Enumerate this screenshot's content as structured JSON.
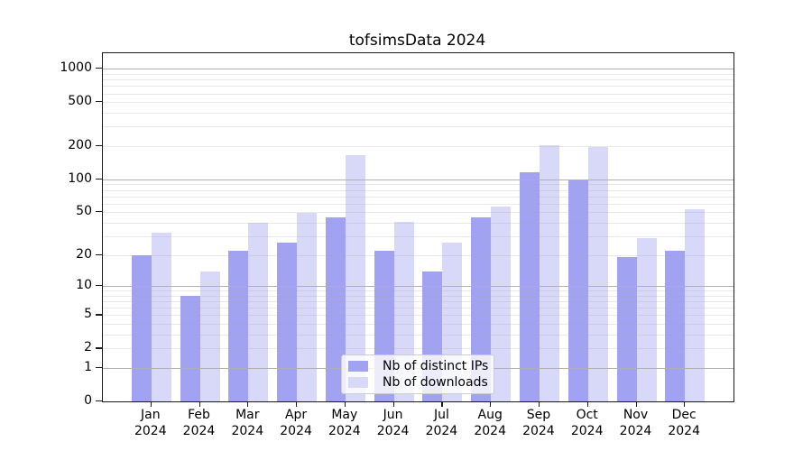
{
  "figure": {
    "title": "tofsimsData 2024"
  },
  "chart_data": {
    "type": "bar",
    "title": "tofsimsData 2024",
    "categories": [
      "Jan",
      "Feb",
      "Mar",
      "Apr",
      "May",
      "Jun",
      "Jul",
      "Aug",
      "Sep",
      "Oct",
      "Nov",
      "Dec"
    ],
    "year": "2024",
    "series": [
      {
        "name": "Nb of distinct IPs",
        "color": "#a2a2f2",
        "values": [
          20,
          8,
          22,
          26,
          45,
          22,
          14,
          45,
          116,
          99,
          19,
          22
        ]
      },
      {
        "name": "Nb of downloads",
        "color": "#d8d8f8",
        "values": [
          32,
          14,
          40,
          49,
          166,
          41,
          26,
          56,
          205,
          196,
          29,
          53
        ]
      }
    ],
    "yscale": "log1p",
    "ylim": [
      0,
      1382
    ],
    "yticks": [
      0,
      1,
      2,
      5,
      10,
      20,
      50,
      100,
      200,
      500,
      1000
    ],
    "grid": {
      "major_ticks": [
        1,
        10,
        100,
        1000
      ],
      "minor_ticks": [
        2,
        3,
        4,
        5,
        6,
        7,
        8,
        9,
        20,
        30,
        40,
        50,
        60,
        70,
        80,
        90,
        200,
        300,
        400,
        500,
        600,
        700,
        800,
        900
      ],
      "major_color": "#b0b0b0"
    },
    "legend": {
      "labels": [
        "Nb of distinct IPs",
        "Nb of downloads"
      ],
      "position": "lower center"
    },
    "xlabel": "",
    "ylabel": ""
  }
}
